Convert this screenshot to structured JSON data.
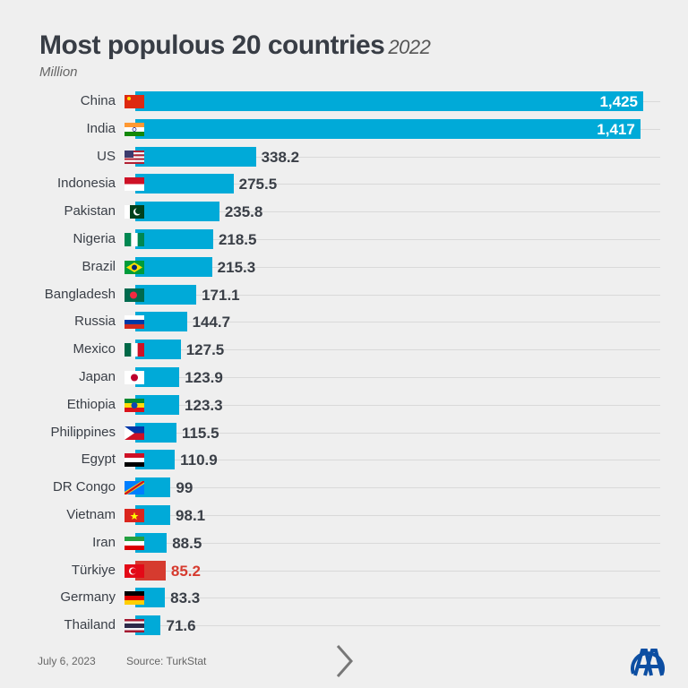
{
  "chart_data": {
    "type": "bar",
    "orientation": "horizontal",
    "title": "Most populous 20 countries",
    "title_year": "2022",
    "unit": "Million",
    "xlim": [
      0,
      1425
    ],
    "grid": true,
    "bar_color": "#00aad8",
    "highlight_color": "#d63b2f",
    "categories": [
      "China",
      "India",
      "US",
      "Indonesia",
      "Pakistan",
      "Nigeria",
      "Brazil",
      "Bangladesh",
      "Russia",
      "Mexico",
      "Japan",
      "Ethiopia",
      "Philippines",
      "Egypt",
      "DR Congo",
      "Vietnam",
      "Iran",
      "Türkiye",
      "Germany",
      "Thailand"
    ],
    "values": [
      1425,
      1417,
      338.2,
      275.5,
      235.8,
      218.5,
      215.3,
      171.1,
      144.7,
      127.5,
      123.9,
      123.3,
      115.5,
      110.9,
      99,
      98.1,
      88.5,
      85.2,
      83.3,
      71.6
    ],
    "value_labels": [
      "1,425",
      "1,417",
      "338.2",
      "275.5",
      "235.8",
      "218.5",
      "215.3",
      "171.1",
      "144.7",
      "127.5",
      "123.9",
      "123.3",
      "115.5",
      "110.9",
      "99",
      "98.1",
      "88.5",
      "85.2",
      "83.3",
      "71.6"
    ],
    "highlight": "Türkiye"
  },
  "flags": [
    {
      "type": "china",
      "colors": [
        "#de2910",
        "#ffde00"
      ]
    },
    {
      "type": "h",
      "colors": [
        "#ff9933",
        "#ffffff",
        "#138808"
      ]
    },
    {
      "type": "us",
      "colors": [
        "#b22234",
        "#ffffff",
        "#3c3b6e"
      ]
    },
    {
      "type": "h",
      "colors": [
        "#ce1126",
        "#ffffff"
      ]
    },
    {
      "type": "pk",
      "colors": [
        "#ffffff",
        "#01411c"
      ]
    },
    {
      "type": "v",
      "colors": [
        "#008751",
        "#ffffff",
        "#008751"
      ]
    },
    {
      "type": "br",
      "colors": [
        "#009c3b",
        "#ffdf00",
        "#002776"
      ]
    },
    {
      "type": "bd",
      "colors": [
        "#006a4e",
        "#f42a41"
      ]
    },
    {
      "type": "h",
      "colors": [
        "#ffffff",
        "#0039a6",
        "#d52b1e"
      ]
    },
    {
      "type": "v",
      "colors": [
        "#006847",
        "#ffffff",
        "#ce1126"
      ]
    },
    {
      "type": "jp",
      "colors": [
        "#ffffff",
        "#bc002d"
      ]
    },
    {
      "type": "et",
      "colors": [
        "#078930",
        "#fcdd09",
        "#da121a",
        "#0f47af"
      ]
    },
    {
      "type": "ph",
      "colors": [
        "#0038a8",
        "#ce1126",
        "#ffffff"
      ]
    },
    {
      "type": "h",
      "colors": [
        "#ce1126",
        "#ffffff",
        "#000000"
      ]
    },
    {
      "type": "cd",
      "colors": [
        "#007fff",
        "#f7d618",
        "#ce1021"
      ]
    },
    {
      "type": "vn",
      "colors": [
        "#da251d",
        "#ffff00"
      ]
    },
    {
      "type": "h",
      "colors": [
        "#239f40",
        "#ffffff",
        "#da0000"
      ]
    },
    {
      "type": "tr",
      "colors": [
        "#e30a17",
        "#ffffff"
      ]
    },
    {
      "type": "h",
      "colors": [
        "#000000",
        "#dd0000",
        "#ffce00"
      ]
    },
    {
      "type": "th",
      "colors": [
        "#a51931",
        "#f4f5f8",
        "#2d2a4a"
      ]
    }
  ],
  "footer": {
    "date": "July 6, 2023",
    "source": "Source: TurkStat"
  },
  "logo_text": "AA"
}
